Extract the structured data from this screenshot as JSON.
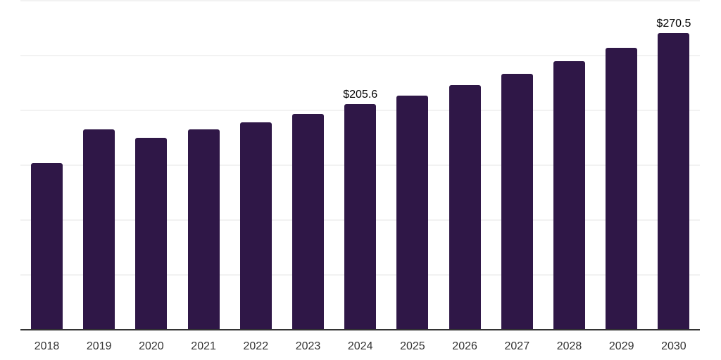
{
  "chart_data": {
    "type": "bar",
    "title": "",
    "xlabel": "",
    "ylabel": "",
    "categories": [
      "2018",
      "2019",
      "2020",
      "2021",
      "2022",
      "2023",
      "2024",
      "2025",
      "2026",
      "2027",
      "2028",
      "2029",
      "2030"
    ],
    "values": [
      152.0,
      182.4,
      175.0,
      183.0,
      189.4,
      197.0,
      205.6,
      213.5,
      223.2,
      233.5,
      245.0,
      257.0,
      270.5
    ],
    "value_labels": [
      "",
      "",
      "",
      "",
      "",
      "",
      "$205.6",
      "",
      "",
      "",
      "",
      "",
      "$270.5"
    ],
    "ylim": [
      0,
      300
    ],
    "gridline_step": 50,
    "grid": true,
    "legend_position": "none",
    "colors": {
      "bar_fill": "#2f1747",
      "gridline": "#f2f2f2",
      "axis_line": "#333333",
      "tick_label": "#333333",
      "value_label": "#000000",
      "background": "#ffffff"
    }
  }
}
